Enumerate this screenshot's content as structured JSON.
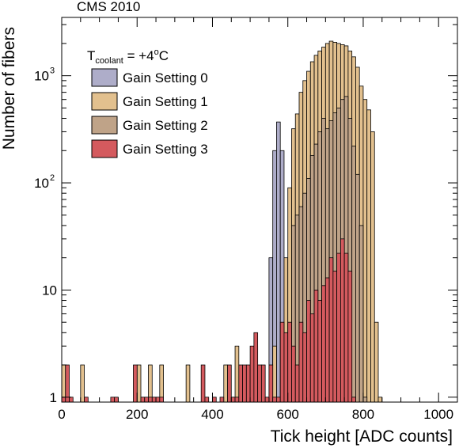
{
  "chart_data": {
    "type": "histogram",
    "header": "CMS 2010",
    "xlabel": "Tick height [ADC counts]",
    "ylabel": "Number of fibers",
    "xlim": [
      0,
      1050
    ],
    "ylim": [
      0.9,
      3500
    ],
    "yscale": "log",
    "bin_width": 10,
    "xticks": [
      0,
      200,
      400,
      600,
      800,
      1000
    ],
    "yticks": [
      {
        "value": 1,
        "label": "1"
      },
      {
        "value": 10,
        "label": "10"
      },
      {
        "value": 100,
        "label": "10",
        "exp": "2"
      },
      {
        "value": 1000,
        "label": "10",
        "exp": "3"
      }
    ],
    "legend": {
      "title": {
        "main": "T",
        "sub": "coolant",
        "rest": " = +4",
        "sup": "o",
        "unit": "C"
      },
      "placement": "top-left"
    },
    "series": [
      {
        "name": "Gain Setting 0",
        "color": "#aeadc9",
        "bins": [
          [
            550,
            20
          ],
          [
            560,
            200
          ],
          [
            570,
            370
          ],
          [
            580,
            200
          ],
          [
            590,
            2
          ],
          [
            600,
            2
          ]
        ]
      },
      {
        "name": "Gain Setting 1",
        "color": "#e2c08e",
        "bins": [
          [
            0,
            2
          ],
          [
            50,
            2
          ],
          [
            200,
            2
          ],
          [
            230,
            2
          ],
          [
            260,
            2
          ],
          [
            330,
            2
          ],
          [
            430,
            2
          ],
          [
            460,
            3
          ],
          [
            510,
            3
          ],
          [
            560,
            3
          ],
          [
            590,
            20
          ],
          [
            600,
            90
          ],
          [
            610,
            320
          ],
          [
            620,
            440
          ],
          [
            630,
            700
          ],
          [
            640,
            900
          ],
          [
            650,
            1100
          ],
          [
            660,
            1350
          ],
          [
            670,
            1550
          ],
          [
            680,
            1700
          ],
          [
            690,
            1850
          ],
          [
            700,
            2000
          ],
          [
            710,
            2100
          ],
          [
            720,
            2050
          ],
          [
            730,
            2000
          ],
          [
            740,
            1950
          ],
          [
            750,
            1900
          ],
          [
            760,
            1700
          ],
          [
            770,
            1500
          ],
          [
            780,
            1200
          ],
          [
            790,
            800
          ],
          [
            800,
            600
          ],
          [
            810,
            480
          ],
          [
            820,
            300
          ],
          [
            830,
            5
          ],
          [
            840,
            1
          ]
        ]
      },
      {
        "name": "Gain Setting 2",
        "color": "#bfa388",
        "bins": [
          [
            600,
            3
          ],
          [
            610,
            40
          ],
          [
            620,
            50
          ],
          [
            630,
            60
          ],
          [
            640,
            80
          ],
          [
            650,
            110
          ],
          [
            660,
            180
          ],
          [
            670,
            230
          ],
          [
            680,
            300
          ],
          [
            690,
            400
          ],
          [
            700,
            320
          ],
          [
            710,
            380
          ],
          [
            720,
            450
          ],
          [
            730,
            500
          ],
          [
            740,
            600
          ],
          [
            750,
            640
          ],
          [
            760,
            400
          ],
          [
            770,
            220
          ],
          [
            780,
            120
          ],
          [
            790,
            40
          ],
          [
            800,
            1
          ]
        ]
      },
      {
        "name": "Gain Setting 3",
        "color": "#d45a5e",
        "bins": [
          [
            0,
            1
          ],
          [
            10,
            2
          ],
          [
            20,
            1
          ],
          [
            60,
            1
          ],
          [
            130,
            1
          ],
          [
            140,
            1
          ],
          [
            190,
            2
          ],
          [
            210,
            1
          ],
          [
            220,
            1
          ],
          [
            230,
            1
          ],
          [
            240,
            1
          ],
          [
            250,
            1
          ],
          [
            260,
            1
          ],
          [
            370,
            2
          ],
          [
            380,
            1
          ],
          [
            400,
            1
          ],
          [
            420,
            1
          ],
          [
            440,
            2
          ],
          [
            450,
            1
          ],
          [
            460,
            1
          ],
          [
            470,
            2
          ],
          [
            480,
            2
          ],
          [
            490,
            2
          ],
          [
            500,
            3
          ],
          [
            510,
            4
          ],
          [
            520,
            2
          ],
          [
            530,
            2
          ],
          [
            540,
            1
          ],
          [
            550,
            2
          ],
          [
            560,
            1
          ],
          [
            570,
            1
          ],
          [
            580,
            5
          ],
          [
            590,
            4
          ],
          [
            600,
            5
          ],
          [
            610,
            3
          ],
          [
            620,
            2
          ],
          [
            630,
            5
          ],
          [
            640,
            4
          ],
          [
            650,
            8
          ],
          [
            660,
            6
          ],
          [
            670,
            10
          ],
          [
            680,
            8
          ],
          [
            690,
            11
          ],
          [
            700,
            13
          ],
          [
            710,
            20
          ],
          [
            720,
            15
          ],
          [
            730,
            22
          ],
          [
            740,
            30
          ],
          [
            750,
            22
          ],
          [
            760,
            15
          ],
          [
            770,
            1
          ]
        ]
      }
    ]
  }
}
